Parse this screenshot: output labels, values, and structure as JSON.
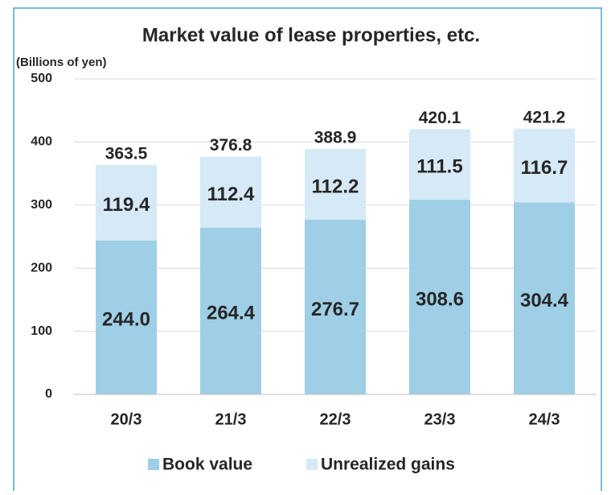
{
  "chart_data": {
    "type": "stacked_bar",
    "title": "Market value of lease properties, etc.",
    "y_axis_label": "(Billions of yen)",
    "categories": [
      "20/3",
      "21/3",
      "22/3",
      "23/3",
      "24/3"
    ],
    "series": [
      {
        "name": "Book value",
        "color": "#9ecfe6",
        "values": [
          244.0,
          264.4,
          276.7,
          308.6,
          304.4
        ],
        "value_labels": [
          "244.0",
          "264.4",
          "276.7",
          "308.6",
          "304.4"
        ]
      },
      {
        "name": "Unrealized gains",
        "color": "#d5e9f7",
        "values": [
          119.4,
          112.4,
          112.2,
          111.5,
          116.7
        ]
      }
    ],
    "totals": [
      363.5,
      376.8,
      388.9,
      420.1,
      421.2
    ],
    "ylim": [
      0,
      500
    ],
    "yticks": [
      0,
      100,
      200,
      300,
      400,
      500
    ],
    "grid": true,
    "legend": "bottom"
  }
}
